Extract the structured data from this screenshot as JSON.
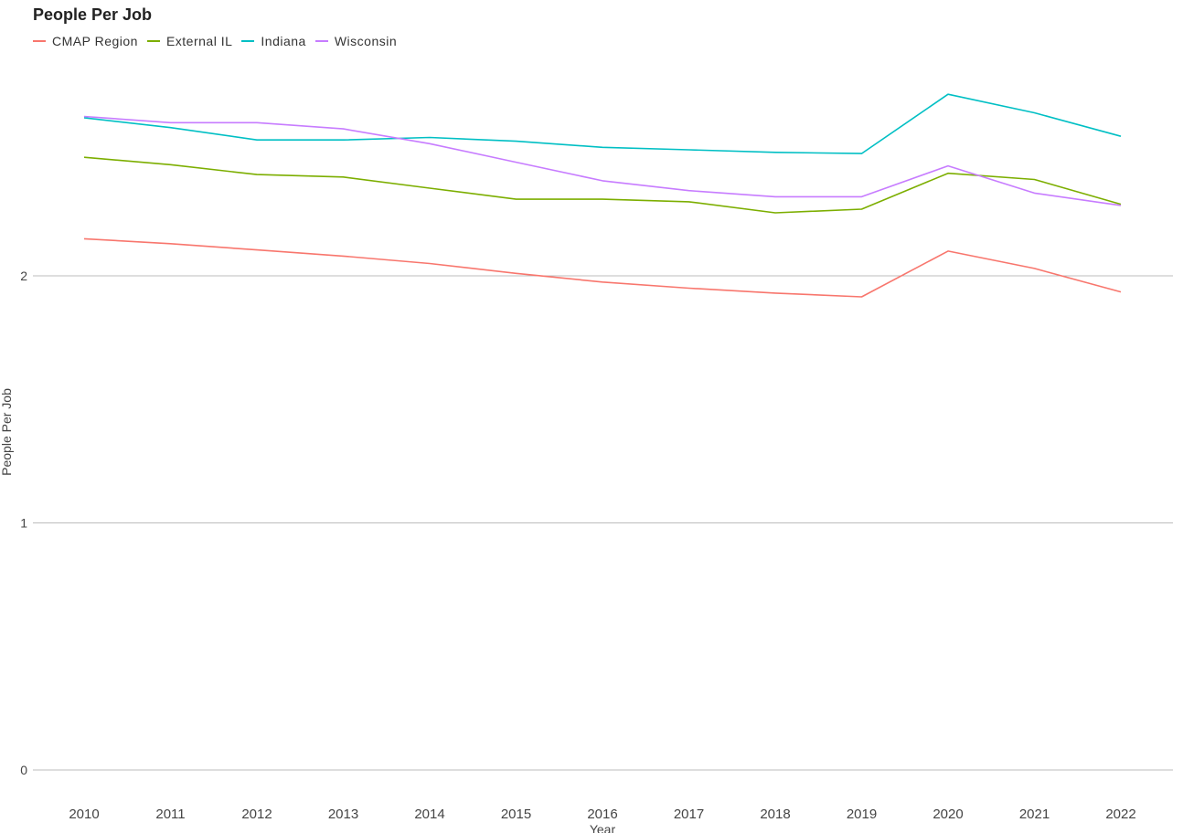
{
  "chart_data": {
    "type": "line",
    "title": "People Per Job",
    "xlabel": "Year",
    "ylabel": "People Per Job",
    "legend_position": "top-left",
    "grid": true,
    "ylim": [
      0,
      2.9
    ],
    "y_ticks": [
      0,
      1,
      2
    ],
    "x": [
      "2010",
      "2011",
      "2012",
      "2013",
      "2014",
      "2015",
      "2016",
      "2017",
      "2018",
      "2019",
      "2020",
      "2021",
      "2022"
    ],
    "series": [
      {
        "name": "CMAP Region",
        "color": "#f8766d",
        "values": [
          2.15,
          2.13,
          2.105,
          2.08,
          2.05,
          2.01,
          1.975,
          1.95,
          1.93,
          1.915,
          2.1,
          2.03,
          1.935
        ]
      },
      {
        "name": "External IL",
        "color": "#7cae00",
        "values": [
          2.48,
          2.45,
          2.41,
          2.4,
          2.355,
          2.31,
          2.31,
          2.3,
          2.255,
          2.27,
          2.415,
          2.39,
          2.29
        ]
      },
      {
        "name": "Indiana",
        "color": "#00bfc4",
        "values": [
          2.64,
          2.6,
          2.55,
          2.55,
          2.56,
          2.545,
          2.52,
          2.51,
          2.5,
          2.495,
          2.735,
          2.66,
          2.565
        ]
      },
      {
        "name": "Wisconsin",
        "color": "#c77cff",
        "values": [
          2.645,
          2.62,
          2.62,
          2.595,
          2.535,
          2.46,
          2.385,
          2.345,
          2.32,
          2.32,
          2.445,
          2.335,
          2.285
        ]
      }
    ]
  }
}
